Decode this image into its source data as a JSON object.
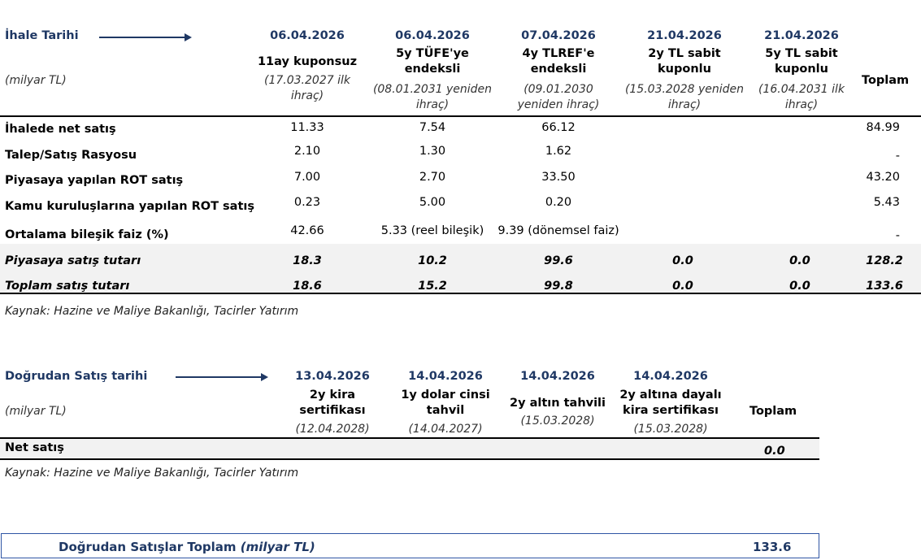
{
  "auction": {
    "title": "İhale Tarihi",
    "unit": "(milyar TL)",
    "columns": [
      {
        "date": "06.04.2026",
        "name_lines": [
          "11ay kuponsuz"
        ],
        "sub_lines": [
          "(17.03.2027 ilk",
          "ihraç)"
        ]
      },
      {
        "date": "06.04.2026",
        "name_lines": [
          "5y TÜFE'ye",
          "endeksli"
        ],
        "sub_lines": [
          "(08.01.2031 yeniden",
          "ihraç)"
        ]
      },
      {
        "date": "07.04.2026",
        "name_lines": [
          "4y TLREF'e",
          "endeksli"
        ],
        "sub_lines": [
          "(09.01.2030",
          "yeniden ihraç)"
        ]
      },
      {
        "date": "21.04.2026",
        "name_lines": [
          "2y TL sabit",
          "kuponlu"
        ],
        "sub_lines": [
          "(15.03.2028 yeniden",
          "ihraç)"
        ]
      },
      {
        "date": "21.04.2026",
        "name_lines": [
          "5y TL sabit",
          "kuponlu"
        ],
        "sub_lines": [
          "(16.04.2031 ilk",
          "ihraç)"
        ]
      }
    ],
    "total_header": "Toplam",
    "rows": [
      {
        "label": "İhalede net satış",
        "values": [
          "11.33",
          "7.54",
          "66.12",
          "",
          ""
        ],
        "total": "84.99"
      },
      {
        "label": "Talep/Satış Rasyosu",
        "values": [
          "2.10",
          "1.30",
          "1.62",
          "",
          ""
        ],
        "total": "-"
      },
      {
        "label": "Piyasaya yapılan ROT satış",
        "values": [
          "7.00",
          "2.70",
          "33.50",
          "",
          ""
        ],
        "total": "43.20"
      },
      {
        "label": "Kamu kuruluşlarına yapılan ROT satış",
        "values": [
          "0.23",
          "5.00",
          "0.20",
          "",
          ""
        ],
        "total": "5.43"
      },
      {
        "label": "Ortalama bileşik faiz (%)",
        "values": [
          "42.66",
          "5.33 (reel bileşik)",
          "9.39 (dönemsel faiz)",
          "",
          ""
        ],
        "total": "-"
      }
    ],
    "summary_rows": [
      {
        "label": "Piyasaya satış tutarı",
        "values": [
          "18.3",
          "10.2",
          "99.6",
          "0.0",
          "0.0"
        ],
        "total": "128.2"
      },
      {
        "label": "Toplam satış tutarı",
        "values": [
          "18.6",
          "15.2",
          "99.8",
          "0.0",
          "0.0"
        ],
        "total": "133.6"
      }
    ],
    "source": "Kaynak: Hazine ve Maliye Bakanlığı, Tacirler Yatırım"
  },
  "direct": {
    "title": "Doğrudan Satış tarihi",
    "unit": "(milyar TL)",
    "columns": [
      {
        "date": "13.04.2026",
        "name_lines": [
          "2y kira",
          "sertifikası"
        ],
        "sub_lines": [
          "(12.04.2028)"
        ]
      },
      {
        "date": "14.04.2026",
        "name_lines": [
          "1y dolar cinsi",
          "tahvil"
        ],
        "sub_lines": [
          "(14.04.2027)"
        ]
      },
      {
        "date": "14.04.2026",
        "name_lines": [
          "2y altın tahvili"
        ],
        "sub_lines": [
          "(15.03.2028)"
        ]
      },
      {
        "date": "14.04.2026",
        "name_lines": [
          "2y altına dayalı",
          "kira sertifikası"
        ],
        "sub_lines": [
          "(15.03.2028)"
        ]
      }
    ],
    "total_header": "Toplam",
    "net_row": {
      "label": "Net satış",
      "total": "0.0"
    },
    "source": "Kaynak: Hazine ve Maliye Bakanlığı, Tacirler Yatırım"
  },
  "footer": {
    "label": "Doğrudan Satışlar Toplam",
    "unit": "(milyar TL)",
    "value": "133.6"
  }
}
